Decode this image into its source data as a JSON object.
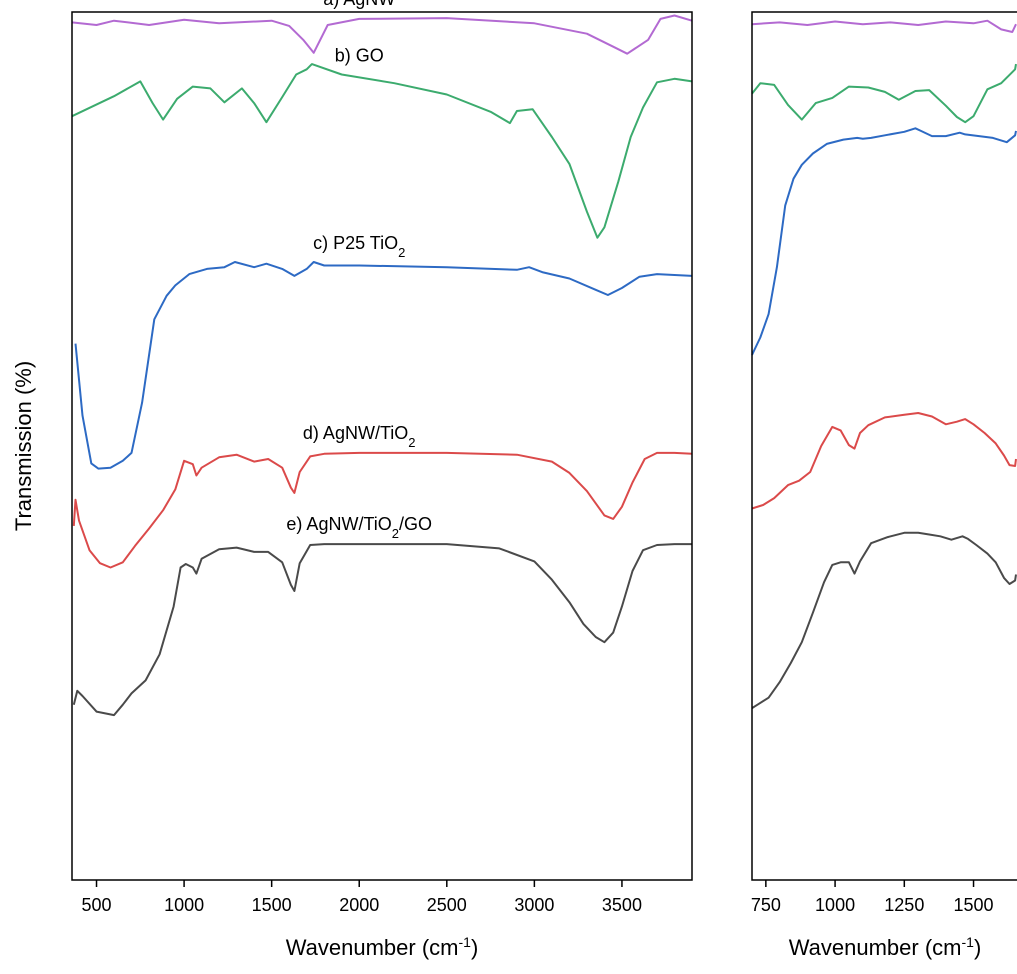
{
  "chart_data": [
    {
      "type": "line",
      "panel": "left",
      "xlabel": "Wavenumber (cm⁻¹)",
      "ylabel": "Transmission (%)",
      "xlim": [
        360,
        3900
      ],
      "ylim": [
        0,
        100
      ],
      "xticks": [
        500,
        1000,
        1500,
        2000,
        2500,
        3000,
        3500
      ],
      "grid": false,
      "series": [
        {
          "name": "a) AgNW",
          "name_parts": {
            "pre": "a) AgNW",
            "sub": "",
            "post": ""
          },
          "color": "#b36ad2",
          "x": [
            360,
            500,
            600,
            800,
            1000,
            1200,
            1500,
            1600,
            1680,
            1740,
            1820,
            2000,
            2500,
            3000,
            3300,
            3450,
            3530,
            3650,
            3720,
            3800,
            3900
          ],
          "y": [
            98.8,
            98.5,
            99,
            98.5,
            99.1,
            98.7,
            99,
            98.4,
            96.8,
            95.3,
            98.5,
            99.2,
            99.3,
            98.7,
            97.5,
            96,
            95.2,
            96.8,
            99.2,
            99.6,
            99
          ]
        },
        {
          "name": "b) GO",
          "name_parts": {
            "pre": "b) GO",
            "sub": "",
            "post": ""
          },
          "color": "#3cab6e",
          "x": [
            360,
            600,
            750,
            820,
            880,
            960,
            1050,
            1150,
            1230,
            1330,
            1400,
            1470,
            1560,
            1640,
            1700,
            1730,
            1900,
            2200,
            2500,
            2750,
            2860,
            2900,
            2990,
            3100,
            3200,
            3300,
            3360,
            3400,
            3480,
            3550,
            3620,
            3700,
            3800,
            3900
          ],
          "y": [
            88,
            90.3,
            92,
            89.5,
            87.6,
            90,
            91.4,
            91.2,
            89.6,
            91.2,
            89.5,
            87.3,
            90.2,
            92.8,
            93.4,
            94,
            92.8,
            91.8,
            90.5,
            88.5,
            87.2,
            88.6,
            88.8,
            85.6,
            82.5,
            77,
            74,
            75.2,
            80.5,
            85.6,
            89,
            91.9,
            92.3,
            92
          ]
        },
        {
          "name": "c) P25 TiO2",
          "name_parts": {
            "pre": "c) P25 TiO",
            "sub": "2",
            "post": ""
          },
          "color": "#2d6ac4",
          "x": [
            380,
            420,
            470,
            510,
            580,
            650,
            700,
            760,
            830,
            900,
            950,
            1030,
            1130,
            1230,
            1290,
            1400,
            1470,
            1560,
            1630,
            1700,
            1740,
            1800,
            2000,
            2500,
            2900,
            2970,
            3050,
            3200,
            3350,
            3420,
            3500,
            3600,
            3700,
            3900
          ],
          "y": [
            61.8,
            53.5,
            48,
            47.4,
            47.5,
            48.3,
            49.2,
            55,
            64.6,
            67.3,
            68.5,
            69.8,
            70.4,
            70.6,
            71.2,
            70.6,
            71,
            70.4,
            69.6,
            70.4,
            71.2,
            70.8,
            70.8,
            70.6,
            70.3,
            70.6,
            70,
            69.3,
            68,
            67.4,
            68.2,
            69.5,
            69.8,
            69.6
          ]
        },
        {
          "name": "d) AgNW/TiO2",
          "name_parts": {
            "pre": "d) AgNW/TiO",
            "sub": "2",
            "post": ""
          },
          "color": "#db4a4a",
          "x": [
            370,
            380,
            400,
            460,
            520,
            580,
            650,
            720,
            800,
            880,
            950,
            1000,
            1050,
            1070,
            1100,
            1200,
            1300,
            1400,
            1480,
            1560,
            1610,
            1630,
            1660,
            1720,
            1800,
            2000,
            2500,
            2900,
            3100,
            3200,
            3300,
            3350,
            3400,
            3450,
            3500,
            3560,
            3630,
            3700,
            3800,
            3900
          ],
          "y": [
            40.8,
            43.8,
            41.4,
            38,
            36.5,
            36,
            36.6,
            38.5,
            40.5,
            42.6,
            45,
            48.3,
            47.9,
            46.6,
            47.5,
            48.7,
            49,
            48.2,
            48.5,
            47.5,
            45.2,
            44.6,
            47,
            48.8,
            49.1,
            49.2,
            49.2,
            49,
            48.2,
            46.9,
            44.8,
            43.4,
            42,
            41.6,
            43,
            45.8,
            48.5,
            49.2,
            49.2,
            49.1
          ]
        },
        {
          "name": "e) AgNW/TiO2/GO",
          "name_parts": {
            "pre": "e) AgNW/TiO",
            "sub": "2",
            "post": "/GO"
          },
          "color": "#4a4a4a",
          "x": [
            370,
            390,
            420,
            500,
            600,
            650,
            700,
            780,
            860,
            940,
            980,
            1010,
            1050,
            1070,
            1100,
            1200,
            1300,
            1400,
            1480,
            1560,
            1610,
            1630,
            1660,
            1720,
            1800,
            2000,
            2500,
            2800,
            3000,
            3100,
            3200,
            3280,
            3350,
            3400,
            3450,
            3500,
            3560,
            3620,
            3700,
            3800,
            3900
          ],
          "y": [
            20.2,
            21.8,
            21.2,
            19.4,
            19,
            20.2,
            21.5,
            23,
            26,
            31.5,
            36,
            36.4,
            36,
            35.3,
            37,
            38.1,
            38.3,
            37.8,
            37.8,
            36.6,
            34,
            33.3,
            36.5,
            38.6,
            38.7,
            38.7,
            38.7,
            38.2,
            36.7,
            34.6,
            32,
            29.5,
            28,
            27.4,
            28.5,
            31.5,
            35.6,
            38,
            38.6,
            38.7,
            38.7
          ]
        }
      ],
      "annotations": [
        {
          "target_series": 0,
          "label": "a) AgNW",
          "x": 2000,
          "y": 100.8
        },
        {
          "target_series": 1,
          "label": "b) GO",
          "x": 2000,
          "y": 94.3
        },
        {
          "target_series": 2,
          "label": "c) P25 TiO2",
          "x": 2000,
          "y": 72.7
        },
        {
          "target_series": 3,
          "label": "d) AgNW/TiO2",
          "x": 2000,
          "y": 50.8
        },
        {
          "target_series": 4,
          "label": "e) AgNW/TiO2/GO",
          "x": 2000,
          "y": 40.3
        }
      ]
    },
    {
      "type": "line",
      "panel": "right",
      "xlabel": "Wavenumber (cm⁻¹)",
      "xlim": [
        700,
        1675
      ],
      "ylim": [
        0,
        100
      ],
      "xticks": [
        750,
        1000,
        1250,
        1500
      ],
      "grid": false,
      "series": [
        {
          "name": "a) AgNW",
          "color": "#b36ad2",
          "x": [
            700,
            800,
            900,
            1000,
            1100,
            1200,
            1300,
            1400,
            1500,
            1550,
            1600,
            1640,
            1675
          ],
          "y": [
            98.6,
            98.8,
            98.5,
            98.9,
            98.6,
            98.8,
            98.5,
            98.9,
            98.7,
            99,
            98,
            97.7,
            98.6
          ]
        },
        {
          "name": "b) GO",
          "color": "#3cab6e",
          "x": [
            700,
            730,
            780,
            830,
            880,
            930,
            990,
            1050,
            1120,
            1180,
            1230,
            1290,
            1340,
            1400,
            1440,
            1470,
            1500,
            1550,
            1600,
            1650,
            1675
          ],
          "y": [
            90.6,
            91.8,
            91.6,
            89.3,
            87.6,
            89.5,
            90.1,
            91.4,
            91.3,
            90.8,
            89.9,
            90.9,
            91,
            89.2,
            87.9,
            87.3,
            88,
            91.1,
            91.8,
            93.4,
            94
          ]
        },
        {
          "name": "c) P25 TiO2",
          "color": "#2d6ac4",
          "x": [
            700,
            730,
            760,
            790,
            820,
            850,
            880,
            920,
            970,
            1030,
            1080,
            1100,
            1130,
            1180,
            1250,
            1290,
            1310,
            1350,
            1400,
            1450,
            1470,
            1520,
            1570,
            1620,
            1650,
            1675
          ],
          "y": [
            60.5,
            62.5,
            65.2,
            70.6,
            77.7,
            80.8,
            82.4,
            83.7,
            84.8,
            85.3,
            85.5,
            85.4,
            85.5,
            85.8,
            86.2,
            86.6,
            86.3,
            85.7,
            85.7,
            86.1,
            85.9,
            85.7,
            85.5,
            85,
            85.8,
            86.3
          ]
        },
        {
          "name": "d) AgNW/TiO2",
          "color": "#db4a4a",
          "x": [
            700,
            740,
            780,
            830,
            870,
            910,
            950,
            990,
            1020,
            1050,
            1070,
            1090,
            1120,
            1180,
            1250,
            1300,
            1350,
            1400,
            1440,
            1470,
            1500,
            1540,
            1580,
            1610,
            1630,
            1650,
            1675
          ],
          "y": [
            42.8,
            43.2,
            44,
            45.5,
            46,
            47,
            50,
            52.2,
            51.8,
            50.1,
            49.7,
            51.5,
            52.4,
            53.3,
            53.6,
            53.8,
            53.4,
            52.5,
            52.8,
            53.1,
            52.5,
            51.5,
            50.3,
            48.9,
            47.8,
            47.7,
            48.5
          ]
        },
        {
          "name": "e) AgNW/TiO2/GO",
          "color": "#4a4a4a",
          "x": [
            700,
            720,
            760,
            800,
            840,
            880,
            920,
            960,
            990,
            1020,
            1050,
            1070,
            1090,
            1130,
            1190,
            1250,
            1300,
            1340,
            1380,
            1420,
            1460,
            1480,
            1510,
            1550,
            1580,
            1610,
            1630,
            1650,
            1675
          ],
          "y": [
            19.8,
            20.2,
            21,
            22.8,
            25,
            27.4,
            30.8,
            34.3,
            36.3,
            36.6,
            36.6,
            35.3,
            36.7,
            38.8,
            39.5,
            40,
            40,
            39.8,
            39.6,
            39.2,
            39.6,
            39.3,
            38.6,
            37.6,
            36.6,
            34.8,
            34.1,
            34.5,
            35.2
          ]
        }
      ]
    }
  ]
}
